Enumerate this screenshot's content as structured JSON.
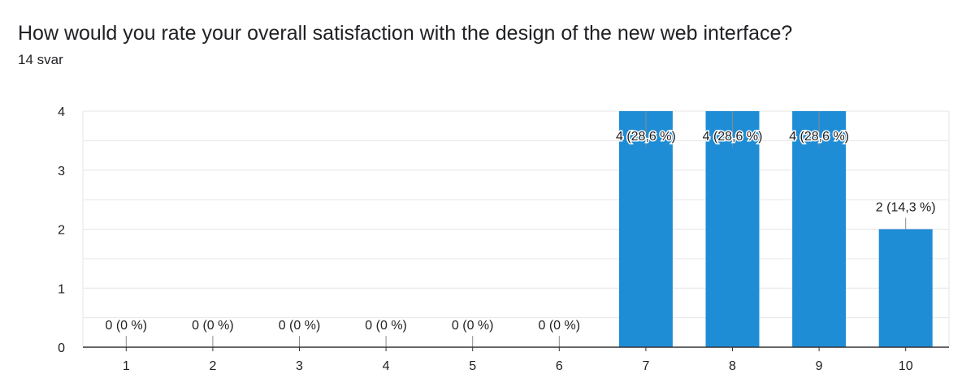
{
  "question": {
    "title": "How would you rate your overall satisfaction with the design of the new web interface?",
    "responses": "14 svar"
  },
  "colors": {
    "bar": "#1f8dd6",
    "grid": "#e6e6e6",
    "axis": "#333333",
    "text": "#202124"
  },
  "chart_data": {
    "type": "bar",
    "categories": [
      "1",
      "2",
      "3",
      "4",
      "5",
      "6",
      "7",
      "8",
      "9",
      "10"
    ],
    "values": [
      0,
      0,
      0,
      0,
      0,
      0,
      4,
      4,
      4,
      2
    ],
    "data_labels": [
      "0 (0 %)",
      "0 (0 %)",
      "0 (0 %)",
      "0 (0 %)",
      "0 (0 %)",
      "0 (0 %)",
      "4 (28,6 %)",
      "4 (28,6 %)",
      "4 (28,6 %)",
      "2 (14,3 %)"
    ],
    "yticks": [
      "0",
      "1",
      "2",
      "3",
      "4"
    ],
    "ylim": [
      0,
      4
    ],
    "grid": true,
    "xlabel": "",
    "ylabel": ""
  }
}
